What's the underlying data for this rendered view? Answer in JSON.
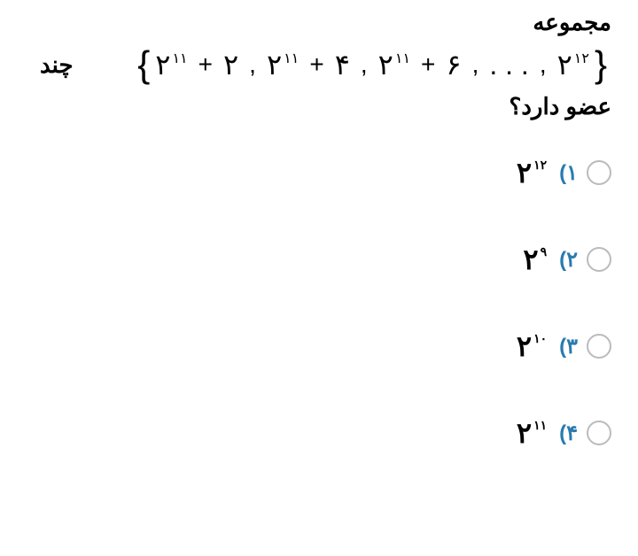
{
  "question": {
    "title": "مجموعه",
    "chand": "چند",
    "end": "عضو دارد؟",
    "set": {
      "t1_base": "۲",
      "t1_exp": "۱۱",
      "t1_add": "۲",
      "t2_base": "۲",
      "t2_exp": "۱۱",
      "t2_add": "۴",
      "t3_base": "۲",
      "t3_exp": "۱۱",
      "t3_add": "۶",
      "dots": ". . .",
      "t4_base": "۲",
      "t4_exp": "۱۲",
      "plus": "+",
      "comma": ","
    }
  },
  "options": [
    {
      "num": "۱)",
      "base": "۲",
      "exp": "۱۲"
    },
    {
      "num": "۲)",
      "base": "۲",
      "exp": "۹"
    },
    {
      "num": "۳)",
      "base": "۲",
      "exp": "۱۰"
    },
    {
      "num": "۴)",
      "base": "۲",
      "exp": "۱۱"
    }
  ],
  "colors": {
    "option_num": "#2a7ab0",
    "text": "#000000",
    "radio_border": "#bbbbbb",
    "bg": "#ffffff"
  }
}
